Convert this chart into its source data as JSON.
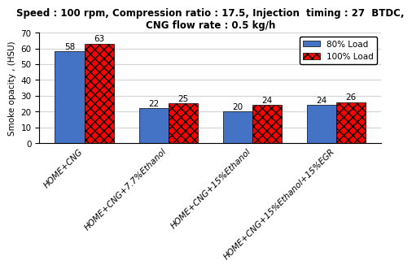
{
  "title_line1": "Speed : 100 rpm, Compression ratio : 17.5, Injection  timing : 27  BTDC,",
  "title_line2": "CNG flow rate : 0.5 kg/h",
  "categories": [
    "HOME+CNG",
    "HOME+CNG+7.7%Ethanol",
    "HOME+CNG+15%Ethanol",
    "HOME+CNG+15%Ethanol+15%EGR"
  ],
  "values_80": [
    58,
    22,
    20,
    24
  ],
  "values_100": [
    63,
    25,
    24,
    26
  ],
  "bar_color_80": "#4472C4",
  "bar_color_100": "#FF0000",
  "bar_hatch_100": "xxx",
  "ylabel": "Smoke opacity , (HSU)",
  "ylim": [
    0,
    70
  ],
  "yticks": [
    0,
    10,
    20,
    30,
    40,
    50,
    60,
    70
  ],
  "legend_labels": [
    "80% Load",
    "100% Load"
  ],
  "bar_width": 0.35,
  "title_fontsize": 8.5,
  "label_fontsize": 7.5,
  "tick_fontsize": 7.5,
  "legend_fontsize": 7.5,
  "value_fontsize": 7.5
}
